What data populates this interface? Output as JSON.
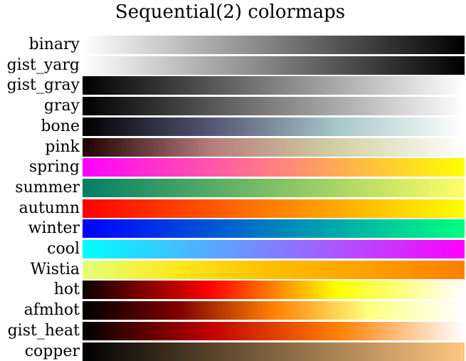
{
  "chart_data": {
    "type": "heatmap",
    "title": "Sequential(2) colormaps",
    "xlabel": "",
    "ylabel": "",
    "grid": false,
    "colormaps": [
      {
        "name": "binary",
        "stops": [
          "#ffffff",
          "#000000"
        ]
      },
      {
        "name": "gist_yarg",
        "stops": [
          "#ffffff",
          "#000000"
        ]
      },
      {
        "name": "gist_gray",
        "stops": [
          "#000000",
          "#ffffff"
        ]
      },
      {
        "name": "gray",
        "stops": [
          "#000000",
          "#ffffff"
        ]
      },
      {
        "name": "bone",
        "stops": [
          "#000000",
          "#545474",
          "#a7c7c7",
          "#ffffff"
        ]
      },
      {
        "name": "pink",
        "stops": [
          "#1e0000",
          "#b57b7b",
          "#d2d1a3",
          "#ffffff"
        ]
      },
      {
        "name": "spring",
        "stops": [
          "#ff00ff",
          "#ffff00"
        ]
      },
      {
        "name": "summer",
        "stops": [
          "#008066",
          "#ffff66"
        ]
      },
      {
        "name": "autumn",
        "stops": [
          "#ff0000",
          "#ffff00"
        ]
      },
      {
        "name": "winter",
        "stops": [
          "#0000ff",
          "#00ff80"
        ]
      },
      {
        "name": "cool",
        "stops": [
          "#00ffff",
          "#ff00ff"
        ]
      },
      {
        "name": "Wistia",
        "stops": [
          "#e4ff7a",
          "#ffe81a",
          "#ffbd00",
          "#ffa000",
          "#fc7f00"
        ]
      },
      {
        "name": "hot",
        "stops": [
          "#0b0000",
          "#ff0000",
          "#ffff00",
          "#ffffff"
        ]
      },
      {
        "name": "afmhot",
        "stops": [
          "#000000",
          "#800000",
          "#ff8000",
          "#ffff80",
          "#ffffff"
        ]
      },
      {
        "name": "gist_heat",
        "stops": [
          "#000000",
          "#bf0000",
          "#ff7f00",
          "#ffffff"
        ]
      },
      {
        "name": "copper",
        "stops": [
          "#000000",
          "#ffc77f"
        ]
      }
    ]
  }
}
